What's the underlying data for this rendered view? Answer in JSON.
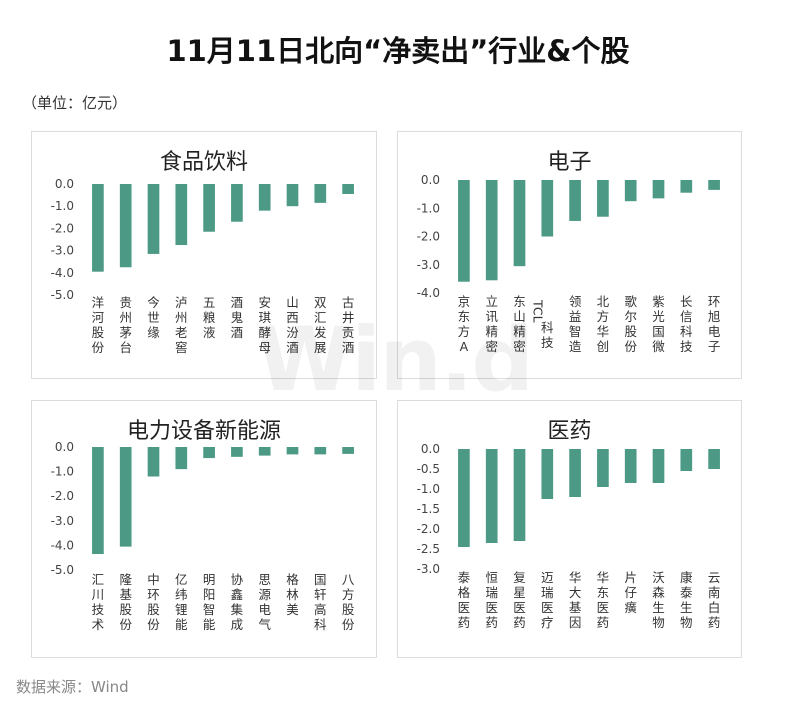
{
  "title": "11月11日北向“净卖出”行业&个股",
  "unit": "（单位：亿元）",
  "source": "数据来源：Wind",
  "watermark": "Win.d",
  "colors": {
    "bar": "#4c9a85",
    "border": "#dcdcdc"
  },
  "chart_data": [
    {
      "type": "bar",
      "title": "食品饮料",
      "categories": [
        "洋河股份",
        "贵州茅台",
        "今世缘",
        "泸州老窖",
        "五粮液",
        "酒鬼酒",
        "安琪酵母",
        "山西汾酒",
        "双汇发展",
        "古井贡酒"
      ],
      "values": [
        -3.95,
        -3.75,
        -3.15,
        -2.75,
        -2.15,
        -1.7,
        -1.2,
        -1.0,
        -0.85,
        -0.45
      ],
      "yticks": [
        "0.0",
        "-1.0",
        "-2.0",
        "-3.0",
        "-4.0",
        "-5.0"
      ],
      "ylim": [
        -5,
        0
      ]
    },
    {
      "type": "bar",
      "title": "电子",
      "categories": [
        "京东方A",
        "立讯精密",
        "东山精密",
        "TCL科技",
        "领益智造",
        "北方华创",
        "歌尔股份",
        "紫光国微",
        "长信科技",
        "环旭电子"
      ],
      "values": [
        -3.6,
        -3.55,
        -3.05,
        -2.0,
        -1.45,
        -1.3,
        -0.75,
        -0.65,
        -0.45,
        -0.35
      ],
      "yticks": [
        "0.0",
        "-1.0",
        "-2.0",
        "-3.0",
        "-4.0"
      ],
      "ylim": [
        -4,
        0
      ]
    },
    {
      "type": "bar",
      "title": "电力设备新能源",
      "categories": [
        "汇川技术",
        "隆基股份",
        "中环股份",
        "亿纬锂能",
        "明阳智能",
        "协鑫集成",
        "思源电气",
        "格林美",
        "国轩高科",
        "八方股份"
      ],
      "values": [
        -4.35,
        -4.05,
        -1.2,
        -0.9,
        -0.45,
        -0.4,
        -0.35,
        -0.3,
        -0.3,
        -0.28
      ],
      "yticks": [
        "0.0",
        "-1.0",
        "-2.0",
        "-3.0",
        "-4.0",
        "-5.0"
      ],
      "ylim": [
        -5,
        0
      ]
    },
    {
      "type": "bar",
      "title": "医药",
      "categories": [
        "泰格医药",
        "恒瑞医药",
        "复星医药",
        "迈瑞医疗",
        "华大基因",
        "华东医药",
        "片仔癀",
        "沃森生物",
        "康泰生物",
        "云南白药"
      ],
      "values": [
        -2.45,
        -2.35,
        -2.3,
        -1.25,
        -1.2,
        -0.95,
        -0.85,
        -0.85,
        -0.55,
        -0.5
      ],
      "yticks": [
        "0.0",
        "-0.5",
        "-1.0",
        "-1.5",
        "-2.0",
        "-2.5",
        "-3.0"
      ],
      "ylim": [
        -3,
        0
      ]
    }
  ]
}
